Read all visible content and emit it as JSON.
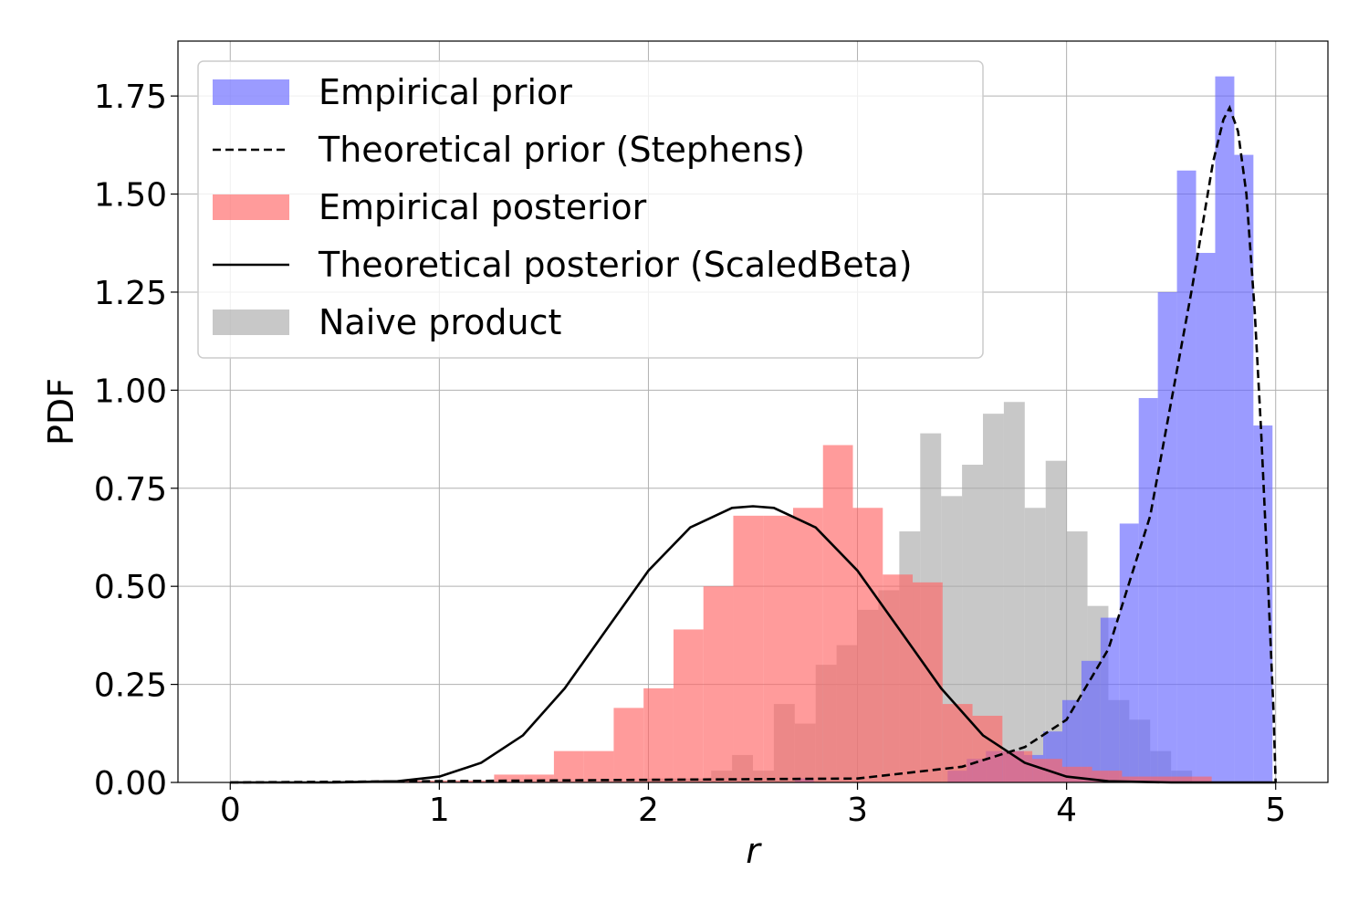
{
  "chart_data": {
    "type": "bar",
    "xlabel": "r",
    "ylabel": "PDF",
    "xlim": [
      -0.25,
      5.25
    ],
    "ylim": [
      0,
      1.89
    ],
    "xticks": [
      "0",
      "1",
      "2",
      "3",
      "4",
      "5"
    ],
    "yticks": [
      "0.00",
      "0.25",
      "0.50",
      "0.75",
      "1.00",
      "1.25",
      "1.50",
      "1.75"
    ],
    "grid": true,
    "legend_position": "upper-left",
    "colors": {
      "prior": "#6666ff",
      "posterior": "#ff6666",
      "naive": "#aaaaaa",
      "line": "#000000"
    },
    "histograms": [
      {
        "name": "Naive product",
        "bin_start": 2.0,
        "bin_width": 0.1,
        "values": [
          0.01,
          0.01,
          0.01,
          0.03,
          0.07,
          0.03,
          0.2,
          0.15,
          0.3,
          0.35,
          0.44,
          0.49,
          0.64,
          0.89,
          0.73,
          0.81,
          0.94,
          0.97,
          0.7,
          0.82,
          0.64,
          0.45,
          0.21,
          0.16,
          0.08,
          0.03
        ]
      },
      {
        "name": "Empirical prior",
        "bin_start": 2.7,
        "bin_width": 0.0914,
        "values": [
          0.01,
          0,
          0,
          0,
          0,
          0,
          0,
          0,
          0.03,
          0.06,
          0.08,
          0.08,
          0.07,
          0.13,
          0.21,
          0.31,
          0.42,
          0.66,
          0.98,
          1.25,
          1.56,
          1.35,
          1.8,
          1.6,
          0.91
        ]
      },
      {
        "name": "Empirical posterior",
        "bin_start": 0.69,
        "bin_width": 0.143,
        "values": [
          0.005,
          0.005,
          0.005,
          0.005,
          0.02,
          0.02,
          0.08,
          0.08,
          0.19,
          0.24,
          0.39,
          0.5,
          0.68,
          0.68,
          0.7,
          0.86,
          0.7,
          0.53,
          0.51,
          0.2,
          0.17,
          0.08,
          0.06,
          0.04,
          0.03,
          0.015,
          0.015,
          0.015
        ]
      }
    ],
    "curves": [
      {
        "name": "Theoretical prior (Stephens)",
        "style": "dashed",
        "x": [
          0,
          3.0,
          3.5,
          3.8,
          4.0,
          4.2,
          4.4,
          4.6,
          4.7,
          4.75,
          4.78,
          4.82,
          4.86,
          4.9,
          4.93,
          4.96,
          4.99,
          5.0
        ],
        "y": [
          0,
          0.01,
          0.04,
          0.09,
          0.16,
          0.34,
          0.68,
          1.26,
          1.58,
          1.69,
          1.72,
          1.66,
          1.5,
          1.2,
          0.9,
          0.55,
          0.18,
          0
        ]
      },
      {
        "name": "Theoretical posterior (ScaledBeta)",
        "style": "solid",
        "x": [
          0,
          0.5,
          0.8,
          1.0,
          1.2,
          1.4,
          1.6,
          1.8,
          2.0,
          2.2,
          2.4,
          2.5,
          2.6,
          2.8,
          3.0,
          3.2,
          3.4,
          3.6,
          3.8,
          4.0,
          4.2,
          4.5,
          5.0
        ],
        "y": [
          0,
          0.0,
          0.003,
          0.015,
          0.05,
          0.12,
          0.24,
          0.39,
          0.54,
          0.65,
          0.7,
          0.704,
          0.7,
          0.65,
          0.54,
          0.39,
          0.24,
          0.12,
          0.05,
          0.015,
          0.003,
          0.0,
          0
        ]
      }
    ],
    "legend": [
      {
        "label": "Empirical prior",
        "kind": "patch",
        "color": "#6666ff"
      },
      {
        "label": "Theoretical prior (Stephens)",
        "kind": "dashed",
        "color": "#000000"
      },
      {
        "label": "Empirical posterior",
        "kind": "patch",
        "color": "#ff6666"
      },
      {
        "label": "Theoretical posterior (ScaledBeta)",
        "kind": "solid",
        "color": "#000000"
      },
      {
        "label": "Naive product",
        "kind": "patch",
        "color": "#aaaaaa"
      }
    ]
  }
}
